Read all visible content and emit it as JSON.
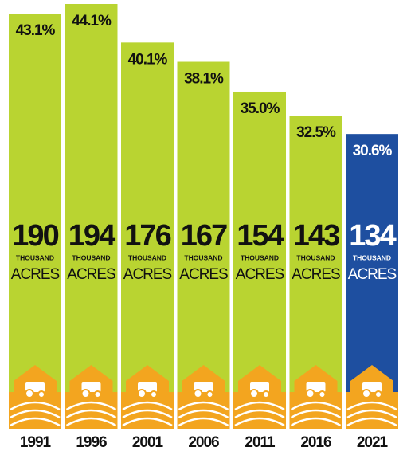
{
  "chart_data": {
    "type": "bar",
    "categories": [
      "1991",
      "1996",
      "2001",
      "2006",
      "2011",
      "2016",
      "2021"
    ],
    "values": [
      43.1,
      44.1,
      40.1,
      38.1,
      35,
      32.5,
      30.6
    ],
    "value_labels": [
      "43.1%",
      "44.1%",
      "40.1%",
      "38.1%",
      "35.0%",
      "32.5%",
      "30.6%"
    ],
    "acres": [
      190,
      194,
      176,
      167,
      154,
      143,
      134
    ],
    "acres_unit": [
      "THOUSAND",
      "ACRES"
    ],
    "colors": [
      "#b9d431",
      "#b9d431",
      "#b9d431",
      "#b9d431",
      "#b9d431",
      "#b9d431",
      "#1e4fa0"
    ]
  }
}
